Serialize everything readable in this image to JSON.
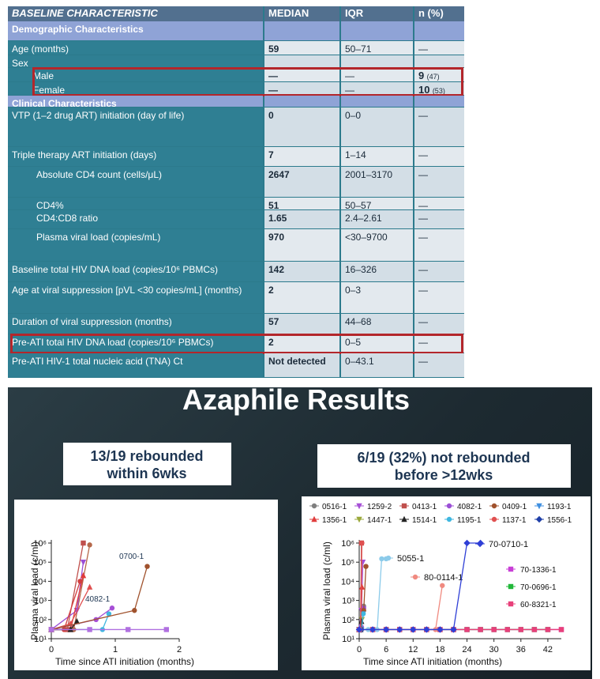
{
  "table": {
    "header": [
      "BASELINE CHARACTERISTIC",
      "MEDIAN",
      "IQR",
      "n (%)"
    ],
    "rows": [
      {
        "section": true,
        "cells": [
          "Demographic Characteristics"
        ]
      },
      {
        "cells": [
          "Age (months)",
          "59",
          "50–71",
          "—"
        ]
      },
      {
        "cells": [
          "Sex"
        ]
      },
      {
        "indent": 1,
        "highlight": true,
        "cells": [
          "Male",
          "—",
          "—",
          {
            "main": "9",
            "sub": "(47)"
          }
        ]
      },
      {
        "indent": 1,
        "highlight": true,
        "cells": [
          "Female",
          "—",
          "—",
          {
            "main": "10",
            "sub": "(53)"
          }
        ]
      },
      {
        "section": true,
        "cells": [
          "Clinical Characteristics"
        ]
      },
      {
        "cells": [
          "VTP (1–2 drug ART) initiation (day of life)",
          "0",
          "0–0",
          "—"
        ]
      },
      {
        "cells": [
          "Triple therapy ART initiation (days)",
          "7",
          "1–14",
          "—"
        ]
      },
      {
        "indent": 2,
        "cells": [
          "Absolute CD4 count (cells/μL)",
          "2647",
          "2001–3170",
          "—"
        ]
      },
      {
        "indent": 2,
        "cells": [
          "CD4%",
          "51",
          "50–57",
          "—"
        ]
      },
      {
        "indent": 2,
        "cells": [
          "CD4:CD8 ratio",
          "1.65",
          "2.4–2.61",
          "—"
        ]
      },
      {
        "indent": 2,
        "cells": [
          "Plasma viral load (copies/mL)",
          "970",
          "<30–9700",
          "—"
        ]
      },
      {
        "cells": [
          "Baseline total HIV DNA load (copies/10⁶ PBMCs)",
          "142",
          "16–326",
          "—"
        ]
      },
      {
        "cells": [
          "Age at viral suppression [pVL <30 copies/mL] (months)",
          "2",
          "0–3",
          "—"
        ]
      },
      {
        "cells": [
          "Duration of viral suppression (months)",
          "57",
          "44–68",
          "—"
        ]
      },
      {
        "highlight": true,
        "cells": [
          "Pre-ATI total HIV DNA load (copies/10⁶ PBMCs)",
          "2",
          "0–5",
          "—"
        ]
      },
      {
        "cells": [
          "Pre-ATI HIV-1 total nucleic acid (TNA) Ct",
          "Not detected",
          "0–43.1",
          "—"
        ]
      }
    ]
  },
  "slide": {
    "title": "Azaphile Results",
    "callouts": [
      [
        "13/19 rebounded",
        "within 6wks"
      ],
      [
        "6/19 (32%) not rebounded",
        "before >12wks"
      ]
    ]
  },
  "chart_data": [
    {
      "type": "line",
      "log_y": true,
      "x_label": "Time since ATI initiation (months)",
      "y_label": "Plasma viral load (c/ml)",
      "xlim": [
        0,
        2
      ],
      "xticks": [
        0,
        1,
        2
      ],
      "ylim": [
        10,
        1000000
      ],
      "yticks": [
        {
          "value": 10,
          "label": "10¹"
        },
        {
          "value": 100,
          "label": "10²"
        },
        {
          "value": 1000,
          "label": "10³"
        },
        {
          "value": 10000,
          "label": "10⁴"
        },
        {
          "value": 100000,
          "label": "10⁵"
        },
        {
          "value": 1000000,
          "label": "10⁶"
        }
      ],
      "annotations": [
        "0700-1",
        "4082-1"
      ],
      "series": [
        {
          "color": "#c0504d",
          "marker": "square",
          "x": [
            0,
            0.25,
            0.5
          ],
          "values": [
            30,
            30,
            1000000
          ]
        },
        {
          "color": "#b5684a",
          "marker": "circle",
          "x": [
            0,
            0.35,
            0.6
          ],
          "values": [
            30,
            30,
            800000
          ]
        },
        {
          "color": "#9b4fd6",
          "marker": "triangle-down",
          "x": [
            0,
            0.4,
            0.5
          ],
          "values": [
            30,
            300,
            100000
          ]
        },
        {
          "color": "#e03c3c",
          "marker": "triangle",
          "x": [
            0,
            0.3,
            0.5
          ],
          "values": [
            30,
            30,
            20000
          ]
        },
        {
          "color": "#d23f3f",
          "marker": "circle",
          "x": [
            0,
            0.2,
            0.45
          ],
          "values": [
            30,
            30,
            10000
          ]
        },
        {
          "color": "#e05050",
          "marker": "triangle",
          "x": [
            0,
            0.3,
            0.6
          ],
          "values": [
            30,
            60,
            5000
          ]
        },
        {
          "color": "#3fb7e0",
          "marker": "circle",
          "x": [
            0,
            0.8,
            0.9
          ],
          "values": [
            30,
            30,
            200
          ]
        },
        {
          "color": "#a64fd6",
          "marker": "circle",
          "x": [
            0,
            0.7,
            0.95
          ],
          "values": [
            30,
            100,
            400
          ]
        },
        {
          "color": "#222222",
          "marker": "triangle",
          "x": [
            0,
            0.3,
            0.4
          ],
          "values": [
            30,
            30,
            80
          ]
        },
        {
          "color": "#a0522d",
          "marker": "circle",
          "x": [
            0,
            1.3,
            1.5
          ],
          "values": [
            30,
            300,
            60000
          ]
        },
        {
          "color": "#b070e0",
          "marker": "square",
          "x": [
            0,
            0.6,
            1.2,
            1.8
          ],
          "values": [
            30,
            30,
            30,
            30
          ]
        }
      ]
    },
    {
      "type": "line",
      "log_y": true,
      "x_label": "Time since ATI initiation (months)",
      "y_label": "Plasma viral load (c/ml)",
      "xlim": [
        0,
        45
      ],
      "xticks": [
        0,
        6,
        12,
        18,
        24,
        30,
        36,
        42
      ],
      "ylim": [
        10,
        1000000
      ],
      "yticks": [
        {
          "value": 10,
          "label": "10¹"
        },
        {
          "value": 100,
          "label": "10²"
        },
        {
          "value": 1000,
          "label": "10³"
        },
        {
          "value": 10000,
          "label": "10⁴"
        },
        {
          "value": 100000,
          "label": "10⁵"
        },
        {
          "value": 1000000,
          "label": "10⁶"
        }
      ],
      "series": [
        {
          "name": "0516-1",
          "color": "#7f7f7f",
          "marker": "circle",
          "x": [
            0,
            0.5,
            1
          ],
          "values": [
            30,
            30,
            500
          ]
        },
        {
          "name": "1259-2",
          "color": "#a64fd6",
          "marker": "triangle-down",
          "x": [
            0,
            0.5,
            0.8
          ],
          "values": [
            30,
            300,
            100000
          ]
        },
        {
          "name": "0413-1",
          "color": "#c0504d",
          "marker": "square",
          "x": [
            0,
            0.3,
            0.5
          ],
          "values": [
            30,
            30,
            1000000
          ]
        },
        {
          "name": "4082-1",
          "color": "#9b4fd6",
          "marker": "circle",
          "x": [
            0,
            0.5,
            1
          ],
          "values": [
            30,
            40,
            400
          ]
        },
        {
          "name": "0409-1",
          "color": "#a0522d",
          "marker": "circle",
          "x": [
            0,
            0.5,
            1,
            1.5
          ],
          "values": [
            30,
            30,
            300,
            60000
          ]
        },
        {
          "name": "1193-1",
          "color": "#3f8fe0",
          "marker": "triangle-down",
          "x": [
            0,
            0.5,
            0.8
          ],
          "values": [
            30,
            30,
            200
          ]
        },
        {
          "name": "1356-1",
          "color": "#e03c3c",
          "marker": "triangle",
          "x": [
            0,
            0.3,
            0.6
          ],
          "values": [
            30,
            30,
            5000
          ]
        },
        {
          "name": "1447-1",
          "color": "#9aa83a",
          "marker": "triangle-down",
          "x": [
            0,
            0.3,
            0.6
          ],
          "values": [
            30,
            30,
            100
          ]
        },
        {
          "name": "1514-1",
          "color": "#222222",
          "marker": "triangle",
          "x": [
            0,
            0.3,
            0.5
          ],
          "values": [
            30,
            30,
            80
          ]
        },
        {
          "name": "1195-1",
          "color": "#3fb7e0",
          "marker": "circle",
          "x": [
            0,
            0.5,
            0.9
          ],
          "values": [
            30,
            30,
            200
          ]
        },
        {
          "name": "1137-1",
          "color": "#e05050",
          "marker": "circle",
          "x": [
            0,
            0.3,
            0.6
          ],
          "values": [
            30,
            30,
            1000000
          ]
        },
        {
          "name": "1556-1",
          "color": "#1f3fa8",
          "marker": "diamond",
          "x": [
            0,
            0.5
          ],
          "values": [
            30,
            30
          ]
        }
      ],
      "side_series": [
        {
          "name": "70-1336-1",
          "color": "#c83fd6",
          "marker": "square",
          "x": [
            0,
            3,
            6,
            9,
            12,
            15,
            18,
            21,
            24,
            27,
            30,
            33,
            36,
            39,
            42,
            45
          ],
          "values": [
            30,
            30,
            30,
            30,
            30,
            30,
            30,
            30,
            30,
            30,
            30,
            30,
            30,
            30,
            30,
            30
          ]
        },
        {
          "name": "70-0696-1",
          "color": "#22b83a",
          "marker": "square",
          "x": [
            0,
            3,
            6,
            9,
            12,
            15,
            18,
            21,
            24,
            27,
            30,
            33,
            36,
            39,
            42
          ],
          "values": [
            30,
            30,
            30,
            30,
            30,
            30,
            30,
            30,
            30,
            30,
            30,
            30,
            30,
            30,
            30
          ]
        },
        {
          "name": "60-8321-1",
          "color": "#e8407a",
          "marker": "square",
          "x": [
            0,
            3,
            6,
            9,
            12,
            15,
            18,
            21,
            24,
            27,
            30,
            33,
            36,
            39,
            42,
            45
          ],
          "values": [
            30,
            30,
            30,
            30,
            30,
            30,
            30,
            30,
            30,
            30,
            30,
            30,
            30,
            30,
            30,
            30
          ]
        }
      ],
      "annotated_series": [
        {
          "name": "5055-1",
          "color": "#8ccbea",
          "marker": "circle",
          "x": [
            0,
            2,
            4,
            5,
            6
          ],
          "values": [
            30,
            30,
            30,
            150000,
            150000
          ]
        },
        {
          "name": "80-0114-1",
          "color": "#f08a80",
          "marker": "circle",
          "x": [
            0,
            3,
            6,
            9,
            12,
            15,
            17,
            18.5
          ],
          "values": [
            30,
            30,
            30,
            30,
            30,
            30,
            30,
            6000
          ]
        },
        {
          "name": "70-0710-1",
          "color": "#2f3fd6",
          "marker": "diamond",
          "x": [
            0,
            3,
            6,
            9,
            12,
            15,
            18,
            21,
            24,
            27
          ],
          "values": [
            30,
            30,
            30,
            30,
            30,
            30,
            30,
            30,
            1000000,
            1000000
          ]
        }
      ]
    }
  ]
}
